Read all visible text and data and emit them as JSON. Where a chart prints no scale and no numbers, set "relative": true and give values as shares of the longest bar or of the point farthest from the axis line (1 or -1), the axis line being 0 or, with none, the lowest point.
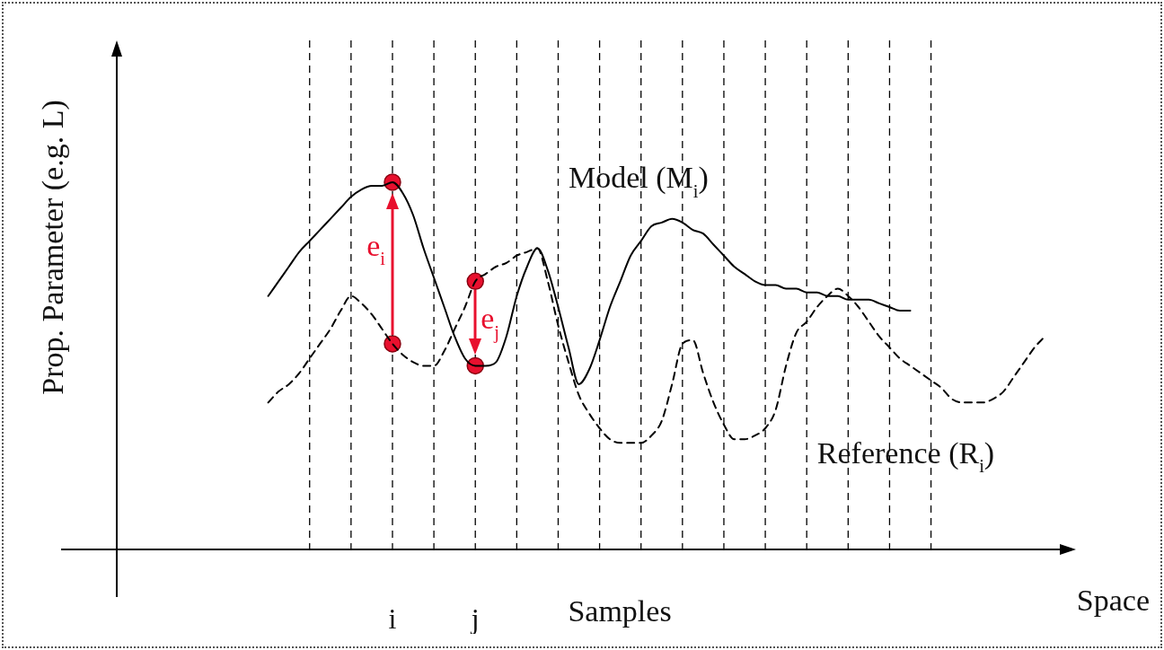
{
  "chart_data": {
    "type": "line",
    "relative": true,
    "xlabel": "Samples",
    "ylabel": "Prop. Parameter (e.g. L)",
    "annotations": [
      "Space",
      "e$_{i}$",
      "e$_{j}$"
    ],
    "categories": [
      null,
      null,
      null,
      null,
      null,
      null,
      null,
      null,
      null,
      null,
      null,
      null,
      null,
      null,
      null,
      null,
      null,
      null,
      null,
      null,
      null,
      null,
      null,
      null,
      null,
      null,
      null,
      null,
      null,
      null,
      null,
      null,
      "i",
      null,
      null,
      null,
      null,
      null,
      null,
      null,
      "j",
      null,
      null,
      null,
      null,
      null,
      null,
      null,
      null,
      null,
      null,
      null,
      null,
      null,
      null,
      null,
      null,
      null,
      null,
      null,
      null,
      null,
      null,
      null,
      null,
      null,
      null,
      null,
      null,
      null,
      null,
      null,
      null,
      null,
      null,
      null,
      null,
      null,
      null,
      null,
      null,
      null,
      null,
      null,
      null,
      null,
      null,
      null,
      null,
      null,
      null,
      null,
      null,
      null,
      null,
      null,
      null,
      null,
      null
    ],
    "tick_labels": "x",
    "grid": "x",
    "legend": false,
    "marker": "none",
    "series": [
      {
        "name": "Model (M$_{i}$)",
        "color": "#000000",
        "line_style": "solid",
        "values": [
          null,
          null,
          null,
          null,
          null,
          null,
          null,
          null,
          null,
          null,
          null,
          null,
          null,
          null,
          null,
          null,
          null,
          null,
          null,
          null,
          0.69,
          0.73,
          0.77,
          0.81,
          0.84,
          0.87,
          0.9,
          0.93,
          0.96,
          0.98,
          0.99,
          0.99,
          1.0,
          0.97,
          0.91,
          0.82,
          0.74,
          0.66,
          0.58,
          0.52,
          0.5,
          0.5,
          0.51,
          0.58,
          0.69,
          0.77,
          0.82,
          0.76,
          0.66,
          0.55,
          0.45,
          0.49,
          0.57,
          0.66,
          0.73,
          0.8,
          0.84,
          0.88,
          0.89,
          0.9,
          0.89,
          0.87,
          0.86,
          0.83,
          0.8,
          0.77,
          0.75,
          0.73,
          0.72,
          0.72,
          0.71,
          0.71,
          0.7,
          0.7,
          0.69,
          0.69,
          0.68,
          0.68,
          0.68,
          0.67,
          0.66,
          0.65,
          0.65,
          null,
          null,
          null,
          null,
          null,
          null,
          null,
          null,
          null,
          null,
          null,
          null,
          null,
          null,
          null,
          null
        ]
      },
      {
        "name": "Reference (R$_{i}$)",
        "color": "#000000",
        "line_style": "dashed",
        "values": [
          null,
          null,
          null,
          null,
          null,
          null,
          null,
          null,
          null,
          null,
          null,
          null,
          null,
          null,
          null,
          null,
          null,
          null,
          null,
          null,
          0.4,
          0.43,
          0.45,
          0.48,
          0.52,
          0.56,
          0.6,
          0.65,
          0.69,
          0.67,
          0.64,
          0.6,
          0.56,
          0.53,
          0.51,
          0.5,
          0.5,
          0.54,
          0.6,
          0.66,
          0.73,
          0.75,
          0.77,
          0.78,
          0.8,
          0.81,
          0.82,
          0.73,
          0.61,
          0.51,
          0.42,
          0.37,
          0.33,
          0.3,
          0.29,
          0.29,
          0.29,
          0.31,
          0.35,
          0.45,
          0.56,
          0.57,
          0.48,
          0.4,
          0.34,
          0.3,
          0.3,
          0.31,
          0.33,
          0.38,
          0.5,
          0.59,
          0.62,
          0.66,
          0.69,
          0.71,
          0.69,
          0.66,
          0.62,
          0.58,
          0.55,
          0.52,
          0.5,
          0.48,
          0.46,
          0.44,
          0.41,
          0.4,
          0.4,
          0.4,
          0.41,
          0.43,
          0.47,
          0.51,
          0.55,
          0.58,
          null,
          null,
          null
        ]
      },
      {
        "type": "scatter",
        "color": "#e8102e",
        "marker": "circle",
        "x": [
          "i",
          "i",
          "j",
          "j"
        ],
        "values": [
          0.56,
          1.0,
          0.73,
          0.5
        ]
      }
    ]
  }
}
